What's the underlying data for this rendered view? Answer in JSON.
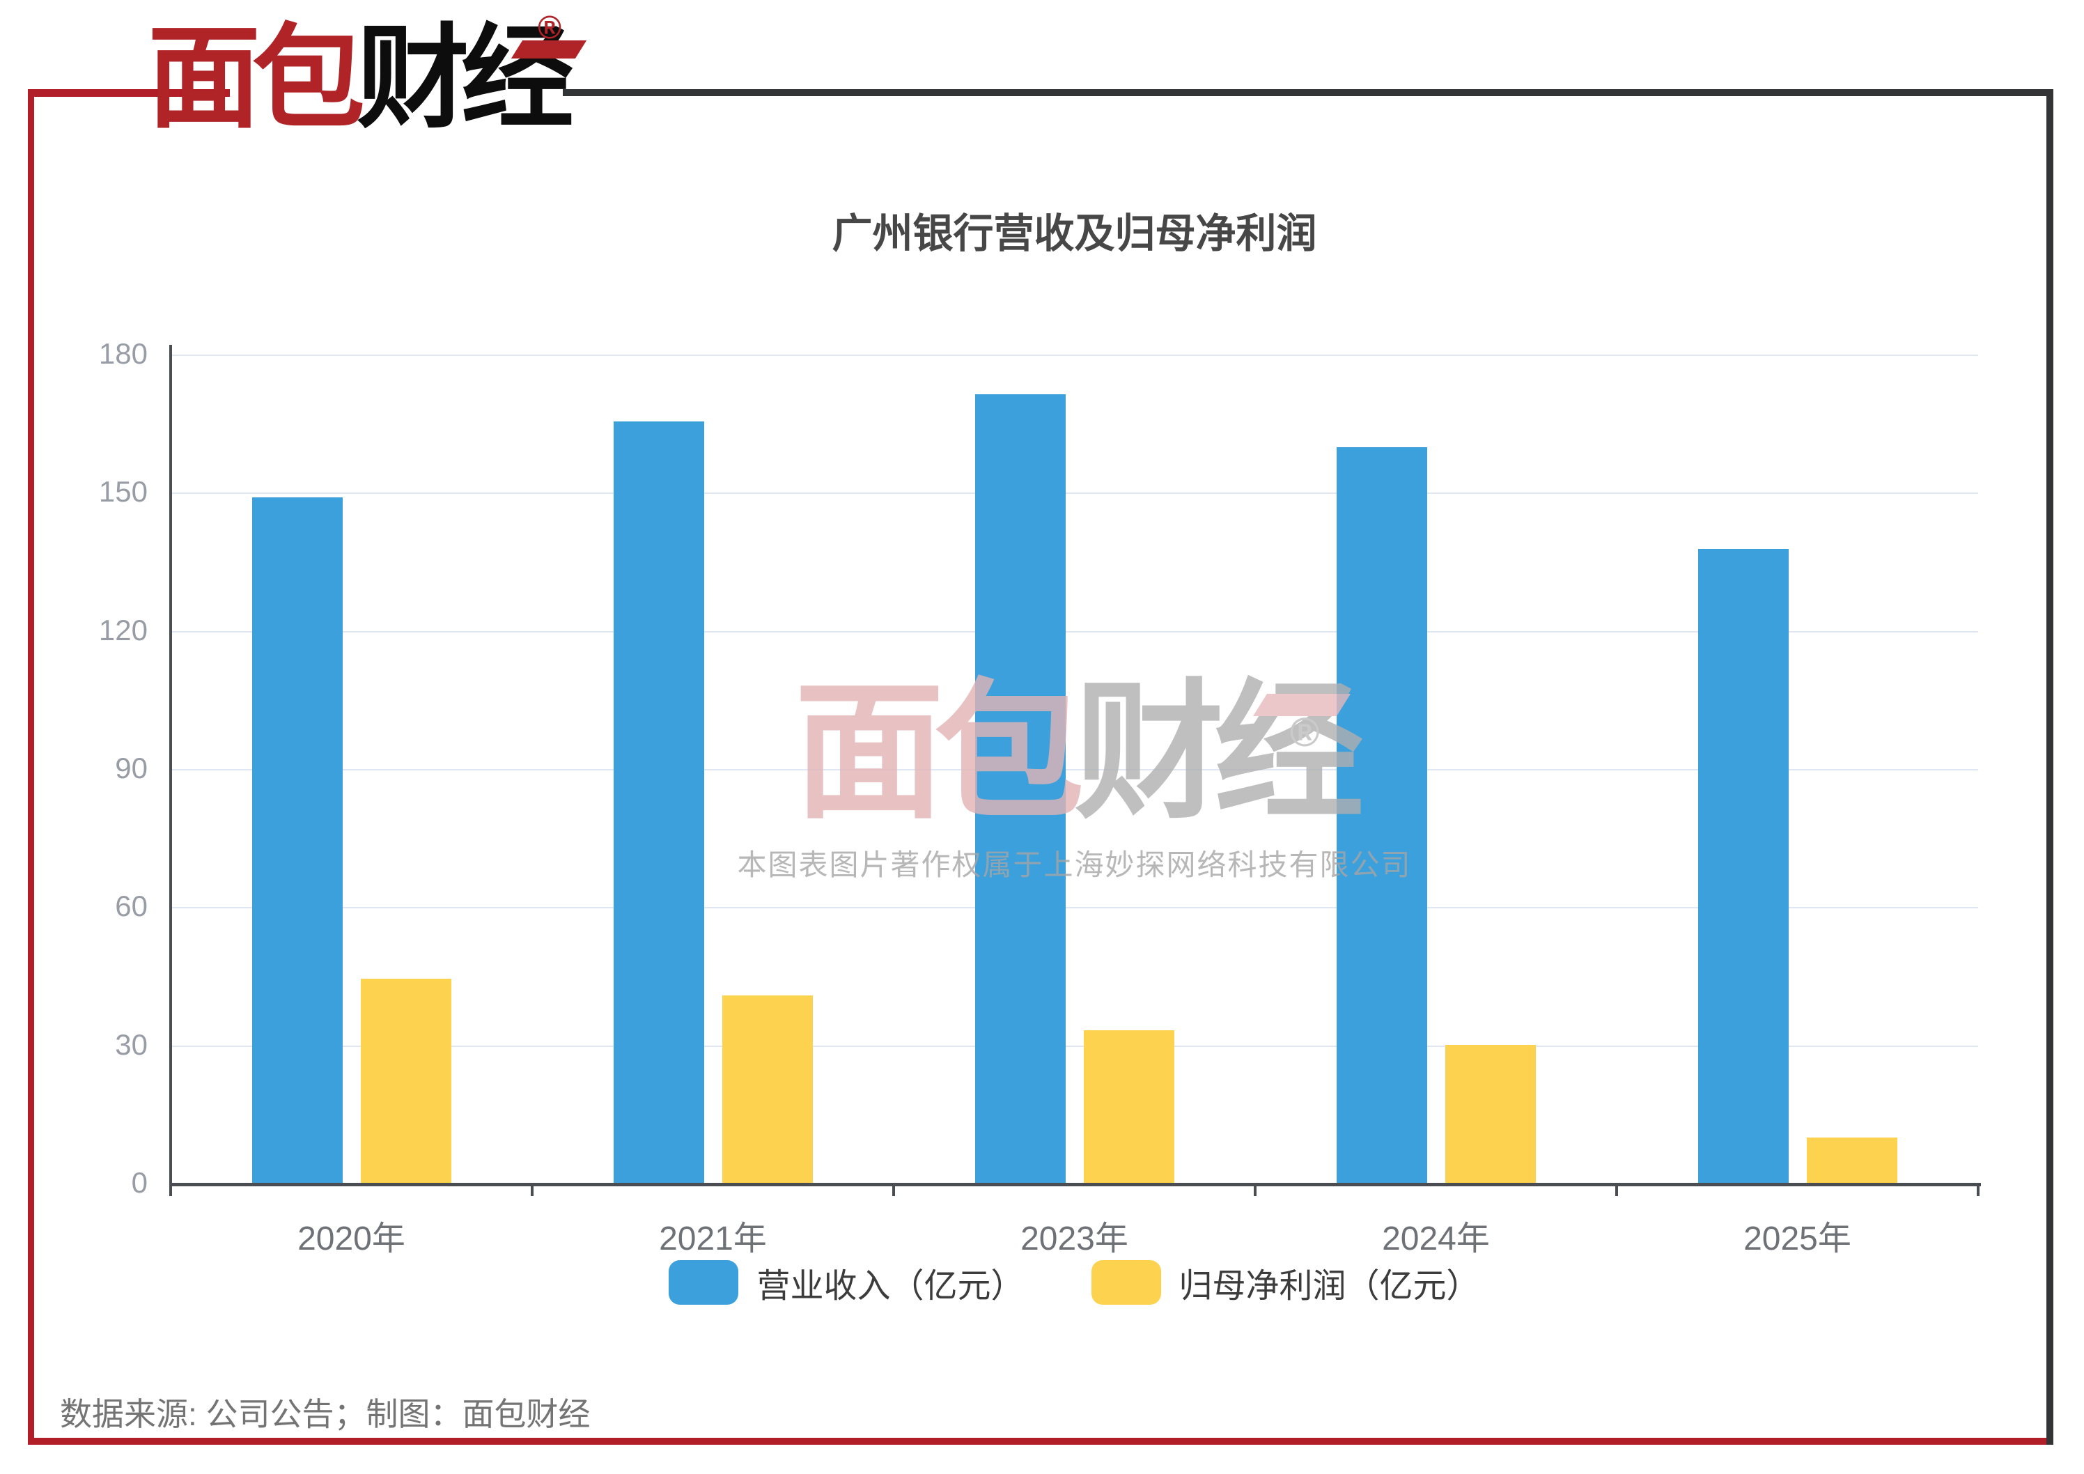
{
  "frame": {
    "accent_red": "#b11e27",
    "accent_dark": "#333436"
  },
  "logo": {
    "text_red": "面包",
    "text_black": "财经",
    "registered_mark": "®",
    "red_color": "#b02327",
    "black_color": "#0d0d0d"
  },
  "chart_data": {
    "type": "bar",
    "title": "广州银行营收及归母净利润",
    "categories": [
      "2020年",
      "2021年",
      "2023年",
      "2024年",
      "2025年"
    ],
    "series": [
      {
        "name": "营业收入（亿元）",
        "color": "#3ba0db",
        "values": [
          149.2,
          165.6,
          171.5,
          160.0,
          137.9
        ]
      },
      {
        "name": "归母净利润（亿元）",
        "color": "#fcd24e",
        "values": [
          44.6,
          41.0,
          33.4,
          30.2,
          10.1
        ]
      }
    ],
    "ylim": [
      0,
      180
    ],
    "yticks": [
      0,
      30,
      60,
      90,
      120,
      150,
      180
    ],
    "xlabel": "",
    "ylabel": "",
    "grid": true,
    "grid_color": "#e0e7f3",
    "axis_color": "#4a4d52",
    "legend_position": "bottom"
  },
  "watermark": {
    "logo_red": "面包",
    "logo_gray": "财经",
    "registered_mark": "®",
    "logo_red_color": "#e3b3b5",
    "logo_gray_color": "#b0b0b0",
    "caption": "本图表图片著作权属于上海妙探网络科技有限公司"
  },
  "footer": {
    "source_text": "数据来源: 公司公告；制图：面包财经"
  }
}
